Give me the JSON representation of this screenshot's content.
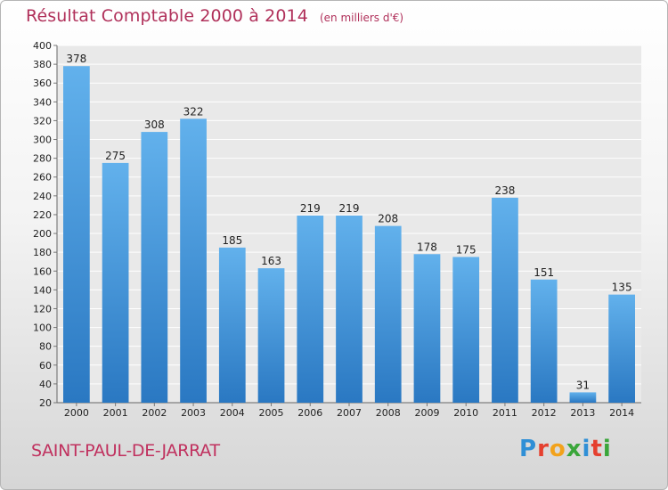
{
  "chart_data": {
    "type": "bar",
    "title": "Résultat Comptable 2000 à 2014",
    "unit_label": "(en milliers d'€)",
    "xlabel": "",
    "ylabel": "",
    "categories": [
      "2000",
      "2001",
      "2002",
      "2003",
      "2004",
      "2005",
      "2006",
      "2007",
      "2008",
      "2009",
      "2010",
      "2011",
      "2012",
      "2013",
      "2014"
    ],
    "values": [
      378,
      275,
      308,
      322,
      185,
      163,
      219,
      219,
      208,
      178,
      175,
      238,
      151,
      31,
      135
    ],
    "ylim": [
      20,
      400
    ],
    "yticks": [
      20,
      40,
      60,
      80,
      100,
      120,
      140,
      160,
      180,
      200,
      220,
      240,
      260,
      280,
      300,
      320,
      340,
      360,
      380,
      400
    ],
    "grid": true,
    "bar_color": "#3f93d8",
    "bar_color_light": "#62b1ec",
    "bar_color_dark": "#2a78c2"
  },
  "footer": {
    "city": "SAINT-PAUL-DE-JARRAT",
    "logo_letters": [
      {
        "ch": "P",
        "color": "#2f8fd6"
      },
      {
        "ch": "r",
        "color": "#e5402f"
      },
      {
        "ch": "o",
        "color": "#f2a21b"
      },
      {
        "ch": "x",
        "color": "#3aa63a"
      },
      {
        "ch": "i",
        "color": "#2f8fd6"
      },
      {
        "ch": "t",
        "color": "#e5402f"
      },
      {
        "ch": "i",
        "color": "#3aa63a"
      }
    ]
  }
}
